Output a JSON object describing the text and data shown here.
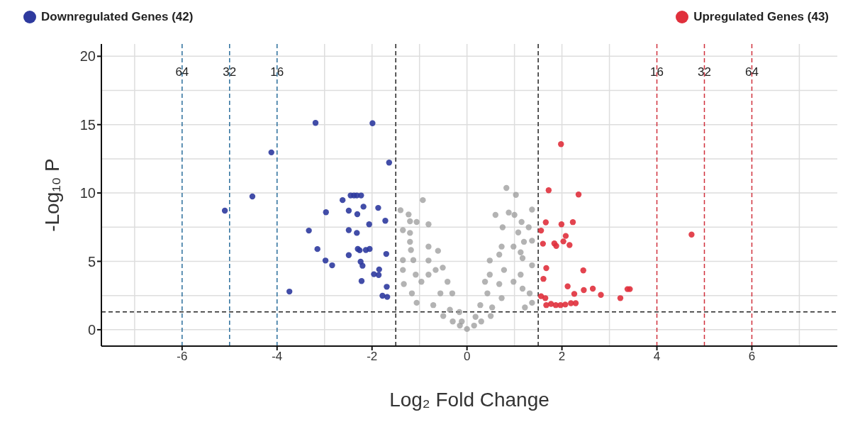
{
  "chart_data": {
    "type": "scatter",
    "xlabel": "Log₂ Fold Change",
    "ylabel": "-Log₁₀ P",
    "xlim": [
      -7.7,
      7.8
    ],
    "ylim": [
      -1.2,
      20.9
    ],
    "xticks": [
      -6,
      -4,
      -2,
      0,
      2,
      4,
      6
    ],
    "yticks": [
      0,
      5,
      10,
      15,
      20
    ],
    "grid": true,
    "legend": "top",
    "marker": "circle",
    "ref_lines": [
      {
        "axis": "x",
        "value": -1.5,
        "color": "#222222",
        "line_style": "dashed"
      },
      {
        "axis": "x",
        "value": 1.5,
        "color": "#222222",
        "line_style": "dashed"
      },
      {
        "axis": "y",
        "value": 1.3,
        "color": "#222222",
        "line_style": "dashed"
      },
      {
        "axis": "x",
        "value": -6,
        "color": "#2b6e9c",
        "line_style": "dashed"
      },
      {
        "axis": "x",
        "value": -5,
        "color": "#2b6e9c",
        "line_style": "dashed"
      },
      {
        "axis": "x",
        "value": -4,
        "color": "#2b6e9c",
        "line_style": "dashed"
      },
      {
        "axis": "x",
        "value": 4,
        "color": "#d0303c",
        "line_style": "dashed"
      },
      {
        "axis": "x",
        "value": 5,
        "color": "#d0303c",
        "line_style": "dashed"
      },
      {
        "axis": "x",
        "value": 6,
        "color": "#d0303c",
        "line_style": "dashed"
      }
    ],
    "annotations": [
      {
        "text": "64",
        "x": -6,
        "y": 18.9
      },
      {
        "text": "32",
        "x": -5,
        "y": 18.9
      },
      {
        "text": "16",
        "x": -4,
        "y": 18.9
      },
      {
        "text": "16",
        "x": 4,
        "y": 18.9
      },
      {
        "text": "32",
        "x": 5,
        "y": 18.9
      },
      {
        "text": "64",
        "x": 6,
        "y": 18.9
      }
    ],
    "series": [
      {
        "color": "#9a9a9a",
        "x": [
          -0.93,
          -1.23,
          -1.4,
          -1.2,
          -1.06,
          -0.81,
          -1.35,
          -1.2,
          -1.2,
          -1.18,
          -0.81,
          -0.61,
          -1.35,
          -1.13,
          -1.35,
          -1.08,
          -1.33,
          -1.16,
          -0.81,
          -0.66,
          -0.51,
          -0.96,
          -0.81,
          -1.06,
          -0.41,
          -0.31,
          -0.16,
          -0.56,
          -0.71,
          -0.36,
          0.83,
          1.03,
          0.6,
          0.88,
          1.0,
          1.37,
          1.15,
          1.3,
          0.75,
          1.08,
          1.2,
          1.37,
          0.73,
          0.98,
          0.68,
          1.13,
          0.48,
          1.17,
          0.48,
          0.78,
          1.13,
          1.37,
          0.38,
          0.68,
          0.98,
          1.17,
          1.32,
          0.43,
          0.73,
          0.28,
          0.53,
          1.22,
          1.37,
          0.18,
          -0.11,
          -0.5,
          0.5,
          -0.3,
          0.3,
          -0.15,
          0.15,
          0.0
        ],
        "values": [
          9.48,
          8.43,
          8.74,
          7.93,
          7.88,
          7.71,
          7.28,
          7.08,
          6.43,
          5.83,
          6.08,
          5.77,
          5.09,
          5.09,
          4.37,
          4.03,
          3.34,
          2.66,
          5.06,
          4.37,
          4.54,
          3.51,
          4.03,
          1.97,
          3.51,
          2.66,
          1.29,
          2.66,
          1.8,
          1.46,
          10.37,
          9.86,
          8.4,
          8.57,
          8.4,
          8.79,
          7.88,
          7.49,
          7.49,
          7.11,
          6.43,
          6.51,
          6.08,
          6.08,
          5.49,
          5.66,
          5.06,
          5.23,
          4.03,
          4.37,
          4.03,
          4.71,
          3.51,
          3.34,
          3.51,
          3.0,
          2.66,
          2.66,
          2.31,
          1.8,
          1.63,
          1.63,
          1.97,
          0.94,
          0.6,
          1.0,
          1.0,
          0.6,
          0.6,
          0.3,
          0.3,
          0.05
        ]
      },
      {
        "name": "Downregulated Genes (42)",
        "color": "#2e3a9e",
        "x": [
          -3.19,
          -1.99,
          -4.12,
          -1.64,
          -4.52,
          -5.1,
          -2.45,
          -2.38,
          -2.32,
          -2.23,
          -2.62,
          -2.18,
          -1.87,
          -2.97,
          -2.49,
          -2.31,
          -1.72,
          -2.06,
          -3.33,
          -2.49,
          -2.32,
          -3.15,
          -2.3,
          -2.26,
          -2.13,
          -2.05,
          -2.49,
          -1.7,
          -2.98,
          -2.84,
          -2.24,
          -2.2,
          -1.85,
          -1.96,
          -1.86,
          -2.22,
          -3.74,
          -1.69,
          -1.78,
          -1.68
        ],
        "values": [
          15.13,
          15.1,
          12.97,
          12.22,
          9.75,
          8.71,
          9.82,
          9.82,
          9.82,
          9.82,
          9.48,
          9.0,
          8.91,
          8.59,
          8.71,
          8.45,
          7.97,
          7.71,
          7.25,
          7.28,
          7.08,
          5.9,
          5.91,
          5.81,
          5.83,
          5.91,
          5.45,
          5.54,
          5.06,
          4.71,
          4.97,
          4.68,
          4.41,
          4.06,
          4.0,
          3.56,
          2.79,
          3.14,
          2.48,
          2.4
        ]
      },
      {
        "name": "Upregulated Genes (43)",
        "color": "#e0303c",
        "x": [
          1.98,
          1.72,
          2.35,
          1.66,
          1.99,
          2.23,
          1.56,
          2.08,
          1.6,
          1.84,
          1.88,
          2.03,
          2.16,
          4.73,
          1.67,
          2.45,
          1.61,
          2.12,
          2.46,
          2.65,
          2.26,
          2.82,
          3.43,
          3.38,
          3.23,
          1.56,
          1.65,
          1.67,
          1.77,
          1.87,
          1.97,
          2.07,
          2.19,
          2.29
        ],
        "values": [
          13.57,
          10.2,
          9.89,
          7.85,
          7.71,
          7.87,
          7.25,
          6.86,
          6.29,
          6.31,
          6.13,
          6.46,
          6.19,
          6.96,
          4.51,
          4.34,
          3.72,
          3.17,
          2.9,
          3.0,
          2.62,
          2.55,
          2.97,
          2.97,
          2.31,
          2.45,
          2.31,
          1.8,
          1.89,
          1.8,
          1.8,
          1.84,
          1.94,
          1.94
        ]
      }
    ]
  }
}
